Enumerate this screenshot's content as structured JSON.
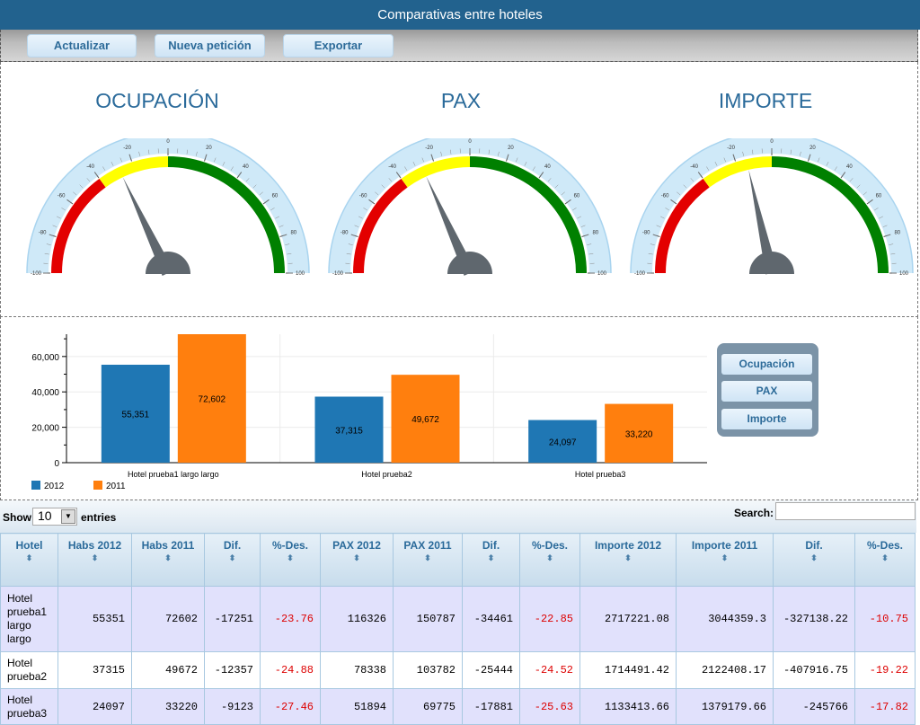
{
  "window": {
    "title": "Comparativas entre hoteles"
  },
  "toolbar": {
    "buttons": [
      "Actualizar",
      "Nueva petición",
      "Exportar"
    ]
  },
  "gauges": [
    {
      "title": "OCUPACIÓN",
      "value": -28
    },
    {
      "title": "PAX",
      "value": -27
    },
    {
      "title": "IMPORTE",
      "value": -14
    }
  ],
  "gauge_scale": {
    "min": -100,
    "max": 100,
    "ticks": [
      "-100",
      "-80",
      "-60",
      "-40",
      "-20",
      "0",
      "20",
      "40",
      "60",
      "80",
      "100"
    ],
    "bands": [
      {
        "from": -100,
        "to": -40,
        "color": "#e30000"
      },
      {
        "from": -40,
        "to": 0,
        "color": "#ffff00"
      },
      {
        "from": 0,
        "to": 100,
        "color": "#008000"
      }
    ]
  },
  "chart_data": {
    "type": "bar",
    "categories": [
      "Hotel prueba1 largo largo",
      "Hotel prueba2",
      "Hotel prueba3"
    ],
    "series": [
      {
        "name": "2012",
        "color": "#1f77b4",
        "values": [
          55351,
          37315,
          24097
        ],
        "labels": [
          "55,351",
          "37,315",
          "24,097"
        ]
      },
      {
        "name": "2011",
        "color": "#ff7f0e",
        "values": [
          72602,
          49672,
          33220
        ],
        "labels": [
          "72,602",
          "49,672",
          "33,220"
        ]
      }
    ],
    "ylim": [
      0,
      72602
    ],
    "yticks": [
      0,
      20000,
      40000,
      60000
    ],
    "ytick_labels": [
      "0",
      "20,000",
      "40,000",
      "60,000"
    ],
    "legend_position": "bottom-left",
    "grid": true
  },
  "selector": {
    "buttons": [
      "Ocupación",
      "PAX",
      "Importe"
    ]
  },
  "table_controls": {
    "show_label": "Show",
    "page_length": "10",
    "entries_label": "entries",
    "search_label": "Search:",
    "search_value": ""
  },
  "table": {
    "columns": [
      "Hotel",
      "Habs 2012",
      "Habs 2011",
      "Dif.",
      "%-Des.",
      "PAX 2012",
      "PAX 2011",
      "Dif.",
      "%-Des.",
      "Importe 2012",
      "Importe 2011",
      "Dif.",
      "%-Des."
    ],
    "rows": [
      [
        "Hotel prueba1 largo largo",
        "55351",
        "72602",
        "-17251",
        "-23.76",
        "116326",
        "150787",
        "-34461",
        "-22.85",
        "2717221.08",
        "3044359.3",
        "-327138.22",
        "-10.75"
      ],
      [
        "Hotel prueba2",
        "37315",
        "49672",
        "-12357",
        "-24.88",
        "78338",
        "103782",
        "-25444",
        "-24.52",
        "1714491.42",
        "2122408.17",
        "-407916.75",
        "-19.22"
      ],
      [
        "Hotel prueba3",
        "24097",
        "33220",
        "-9123",
        "-27.46",
        "51894",
        "69775",
        "-17881",
        "-25.63",
        "1133413.66",
        "1379179.66",
        "-245766",
        "-17.82"
      ]
    ]
  }
}
